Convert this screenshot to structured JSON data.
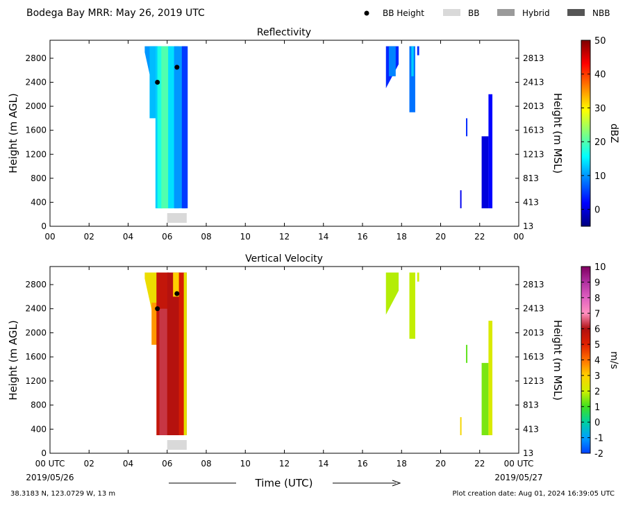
{
  "header": {
    "title": "Bodega Bay MRR:  May 26, 2019 UTC",
    "legend": [
      {
        "label": "BB Height",
        "kind": "dot",
        "color": "#000000"
      },
      {
        "label": "BB",
        "kind": "swatch",
        "color": "#d9d9d9"
      },
      {
        "label": "Hybrid",
        "kind": "swatch",
        "color": "#9a9a9a"
      },
      {
        "label": "NBB",
        "kind": "swatch",
        "color": "#555555"
      }
    ]
  },
  "footer": {
    "location": "38.3183 N, 123.0729 W, 13 m",
    "creation": "Plot creation date: Aug 01, 2024 16:39:05 UTC",
    "start_date": "2019/05/26",
    "end_date": "2019/05/27",
    "time_axis_label": "Time (UTC)"
  },
  "chart_data": [
    {
      "type": "heatmap",
      "title": "Reflectivity",
      "ylabel": "Height (m AGL)",
      "y2label": "Height (m MSL)",
      "x_ticks": [
        "00",
        "02",
        "04",
        "06",
        "08",
        "10",
        "12",
        "14",
        "16",
        "18",
        "20",
        "22",
        "00"
      ],
      "y_ticks": [
        0,
        400,
        800,
        1200,
        1600,
        2000,
        2400,
        2800
      ],
      "y2_ticks": [
        13,
        413,
        813,
        1213,
        1613,
        2013,
        2413,
        2813
      ],
      "xlim": [
        0,
        24
      ],
      "ylim": [
        0,
        3100
      ],
      "colorbar": {
        "label": "dBZ",
        "min": -5,
        "max": 50,
        "ticks": [
          0,
          10,
          20,
          30,
          40,
          50
        ],
        "colormap": "jet"
      },
      "bright_band_points": [
        {
          "time": 5.5,
          "height": 2400
        },
        {
          "time": 6.5,
          "height": 2650
        }
      ],
      "bb_type_bar": {
        "start": 6.0,
        "end": 7.0,
        "type": "BB"
      },
      "echo_columns": [
        {
          "t0": 4.85,
          "t1": 5.6,
          "top": 3000,
          "bottom_start": 2900,
          "bottom_end": 1800,
          "value": 10
        },
        {
          "t0": 5.1,
          "t1": 5.6,
          "top": 3000,
          "bottom": 1800,
          "value": 12
        },
        {
          "t0": 5.4,
          "t1": 5.75,
          "top": 3000,
          "bottom": 300,
          "value": 13
        },
        {
          "t0": 5.5,
          "t1": 6.05,
          "top": 3000,
          "bottom": 300,
          "value": 17
        },
        {
          "t0": 5.7,
          "t1": 6.3,
          "top": 3000,
          "bottom": 300,
          "value": 20
        },
        {
          "t0": 6.05,
          "t1": 6.6,
          "top": 3000,
          "bottom": 300,
          "value": 14
        },
        {
          "t0": 6.35,
          "t1": 6.95,
          "top": 3000,
          "bottom": 300,
          "value": 10
        },
        {
          "t0": 6.75,
          "t1": 7.05,
          "top": 3000,
          "bottom": 300,
          "value": 5
        },
        {
          "t0": 17.2,
          "t1": 17.85,
          "top": 3000,
          "bottom_start": 2300,
          "bottom_end": 2700,
          "value": 4
        },
        {
          "t0": 17.35,
          "t1": 17.7,
          "top": 3000,
          "bottom": 2500,
          "value": 9
        },
        {
          "t0": 18.4,
          "t1": 18.7,
          "top": 3000,
          "bottom": 1900,
          "value": 8
        },
        {
          "t0": 18.5,
          "t1": 18.62,
          "top": 3000,
          "bottom": 2500,
          "value": 13
        },
        {
          "t0": 18.8,
          "t1": 18.9,
          "top": 3000,
          "bottom": 2850,
          "value": 4
        },
        {
          "t0": 21.0,
          "t1": 21.07,
          "top": 600,
          "bottom": 300,
          "value": 1
        },
        {
          "t0": 21.3,
          "t1": 21.37,
          "top": 1800,
          "bottom": 1500,
          "value": 4
        },
        {
          "t0": 22.1,
          "t1": 22.45,
          "top": 1500,
          "bottom": 300,
          "value": 0
        },
        {
          "t0": 22.45,
          "t1": 22.65,
          "top": 2200,
          "bottom": 300,
          "value": 2
        }
      ]
    },
    {
      "type": "heatmap",
      "title": "Vertical Velocity",
      "ylabel": "Height (m AGL)",
      "y2label": "Height (m MSL)",
      "x_ticks": [
        "00 UTC",
        "02",
        "04",
        "06",
        "08",
        "10",
        "12",
        "14",
        "16",
        "18",
        "20",
        "22",
        "00 UTC"
      ],
      "y_ticks": [
        0,
        400,
        800,
        1200,
        1600,
        2000,
        2400,
        2800
      ],
      "y2_ticks": [
        13,
        413,
        813,
        1213,
        1613,
        2013,
        2413,
        2813
      ],
      "xlim": [
        0,
        24
      ],
      "ylim": [
        0,
        3100
      ],
      "colorbar": {
        "label": "m/s",
        "min": -2,
        "max": 10,
        "ticks": [
          -2,
          -1,
          0,
          1,
          2,
          3,
          4,
          5,
          6,
          7,
          8,
          9,
          10
        ],
        "colormap": "velocity"
      },
      "bright_band_points": [
        {
          "time": 5.5,
          "height": 2400
        },
        {
          "time": 6.5,
          "height": 2650
        }
      ],
      "bb_type_bar": {
        "start": 6.0,
        "end": 7.0,
        "type": "BB"
      },
      "echo_columns": [
        {
          "t0": 4.85,
          "t1": 5.6,
          "top": 3000,
          "bottom_start": 2900,
          "bottom_end": 1800,
          "value": 2.6
        },
        {
          "t0": 5.2,
          "t1": 5.6,
          "top": 2500,
          "bottom": 1800,
          "value": 3.6
        },
        {
          "t0": 5.45,
          "t1": 6.1,
          "top": 3000,
          "bottom": 300,
          "value": 5.6
        },
        {
          "t0": 5.6,
          "t1": 6.3,
          "top": 2400,
          "bottom": 300,
          "value": 6.3
        },
        {
          "t0": 6.0,
          "t1": 6.65,
          "top": 3000,
          "bottom": 300,
          "value": 5.9
        },
        {
          "t0": 6.3,
          "t1": 6.65,
          "top": 3000,
          "bottom": 2600,
          "value": 3.0
        },
        {
          "t0": 6.6,
          "t1": 7.0,
          "top": 3000,
          "bottom": 300,
          "value": 5.2
        },
        {
          "t0": 6.85,
          "t1": 7.0,
          "top": 3000,
          "bottom": 300,
          "value": 2.4
        },
        {
          "t0": 17.2,
          "t1": 17.85,
          "top": 3000,
          "bottom_start": 2300,
          "bottom_end": 2700,
          "value": 1.8
        },
        {
          "t0": 18.4,
          "t1": 18.7,
          "top": 3000,
          "bottom": 1900,
          "value": 1.9
        },
        {
          "t0": 18.8,
          "t1": 18.9,
          "top": 3000,
          "bottom": 2850,
          "value": 2.0
        },
        {
          "t0": 21.0,
          "t1": 21.07,
          "top": 600,
          "bottom": 300,
          "value": 2.8
        },
        {
          "t0": 21.3,
          "t1": 21.37,
          "top": 1800,
          "bottom": 1500,
          "value": 1.2
        },
        {
          "t0": 22.1,
          "t1": 22.45,
          "top": 1500,
          "bottom": 300,
          "value": 1.4
        },
        {
          "t0": 22.45,
          "t1": 22.65,
          "top": 2200,
          "bottom": 300,
          "value": 2.2
        }
      ]
    }
  ]
}
